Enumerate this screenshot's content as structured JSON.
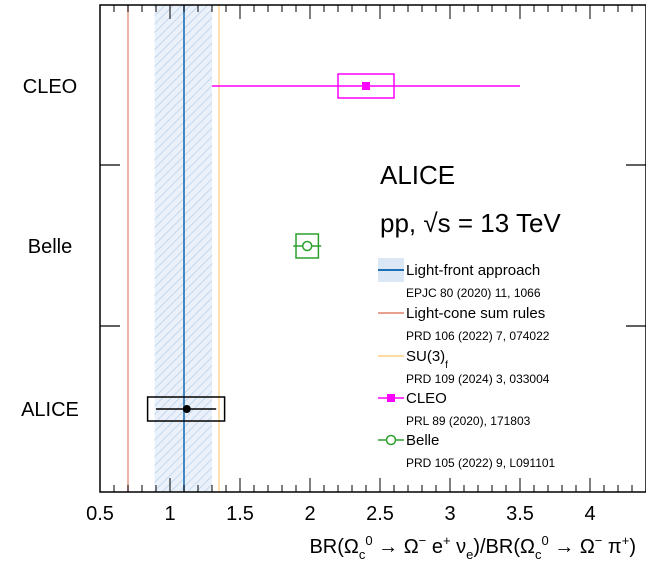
{
  "chart_data": {
    "type": "scatter",
    "title": "",
    "xlabel": "BR(Ω_c^0 → Ω^− e^+ ν_e)/BR(Ω_c^0 → Ω^− π^+)",
    "ylabel": "",
    "xlim": [
      0.5,
      4.4
    ],
    "x_ticks": [
      "0.5",
      "1",
      "1.5",
      "2",
      "2.5",
      "3",
      "3.5",
      "4"
    ],
    "categories": [
      "CLEO",
      "Belle",
      "ALICE"
    ],
    "experiment_label": "ALICE",
    "system_label": "pp, √s = 13 TeV",
    "measurements": [
      {
        "name": "CLEO",
        "value": 2.4,
        "stat_low": 1.3,
        "stat_high": 3.5,
        "syst_low": 2.2,
        "syst_high": 2.6,
        "color": "#ff00ff",
        "marker": "filled-square",
        "ref": "PRL 89 (2020), 171803"
      },
      {
        "name": "Belle",
        "value": 1.98,
        "stat_low": 1.88,
        "stat_high": 2.08,
        "syst_low": 1.9,
        "syst_high": 2.06,
        "color": "#2ca02c",
        "marker": "open-circle",
        "ref": "PRD 105 (2022) 9, L091101"
      },
      {
        "name": "ALICE",
        "value": 1.12,
        "stat_low": 0.9,
        "stat_high": 1.33,
        "syst_low": 0.84,
        "syst_high": 1.39,
        "color": "#000000",
        "marker": "filled-circle"
      }
    ],
    "theory": [
      {
        "name": "Light-front approach",
        "value": 1.1,
        "band_low": 0.89,
        "band_high": 1.3,
        "color": "#1f6fb4",
        "ref": "EPJC 80 (2020) 11, 1066"
      },
      {
        "name": "Light-cone sum rules",
        "value": 0.7,
        "color": "#e8a090",
        "ref": "PRD 106 (2022) 7, 074022"
      },
      {
        "name": "SU(3)",
        "name_sub": "f",
        "value": 1.35,
        "color": "#ffd9a0",
        "ref": "PRD 109 (2024) 3, 033004"
      }
    ],
    "legend": [
      {
        "label": "Light-front approach",
        "ref": "EPJC 80 (2020) 11, 1066",
        "kind": "band-line",
        "color": "#1f6fb4"
      },
      {
        "label": "Light-cone sum rules",
        "ref": "PRD 106 (2022) 7, 074022",
        "kind": "line",
        "color": "#e8a090"
      },
      {
        "label": "SU(3)",
        "sub": "f",
        "ref": "PRD 109 (2024) 3, 033004",
        "kind": "line",
        "color": "#ffd9a0"
      },
      {
        "label": "CLEO",
        "ref": "PRL 89 (2020), 171803",
        "kind": "filled-square",
        "color": "#ff00ff"
      },
      {
        "label": "Belle",
        "ref": "PRD 105 (2022) 9, L091101",
        "kind": "open-circle",
        "color": "#2ca02c"
      }
    ],
    "legend_position": "right",
    "grid": false
  }
}
